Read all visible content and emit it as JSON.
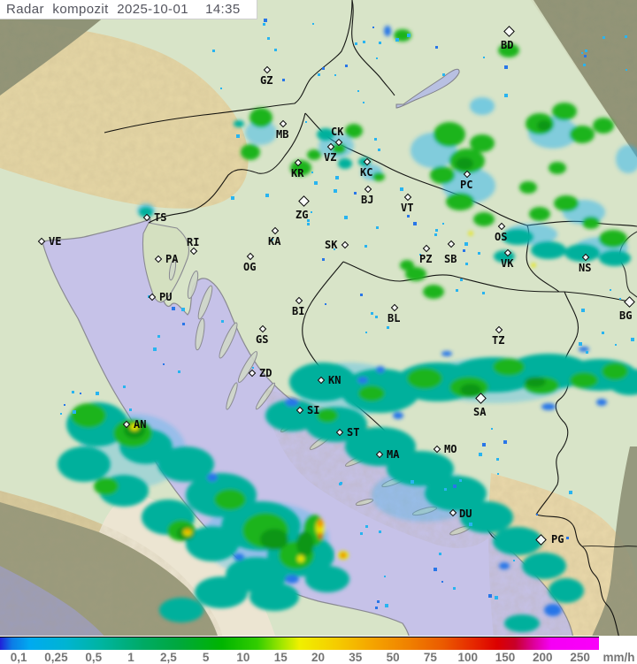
{
  "title": {
    "text": "Radar kompozit 2025-10-01  14:35"
  },
  "colors": {
    "land_in_range": "#d8e4c8",
    "sea_in_range": "#c6c2e8",
    "sea_out_range": "#9c9db8",
    "land_out_range": "#8f9377",
    "terrain_tan": "#e6d7a6",
    "pale_ridge": "#ece5d2",
    "coastline": "#8a8a92",
    "border": "#000000",
    "title_fg": "#54555e",
    "tick_fg": "#757575",
    "rain_cyan": "#28b4f0",
    "rain_blue": "#2876e8",
    "rain_teal": "#00b09c",
    "rain_green": "#1eb41e",
    "rain_dark_green": "#0f9612",
    "rain_yellow": "#e6e600",
    "rain_orange": "#f08c00",
    "rain_red": "#e63c00"
  },
  "legend": {
    "unit": "mm/h",
    "ticks": [
      "0,1",
      "0,25",
      "0,5",
      "1",
      "2,5",
      "5",
      "10",
      "15",
      "20",
      "35",
      "50",
      "75",
      "100",
      "150",
      "200",
      "250"
    ],
    "gradient": [
      [
        0,
        "#2020d8"
      ],
      [
        0.02,
        "#0c7ce6"
      ],
      [
        0.05,
        "#00aaf0"
      ],
      [
        0.11,
        "#00b4d2"
      ],
      [
        0.17,
        "#00b4a0"
      ],
      [
        0.24,
        "#00aa64"
      ],
      [
        0.3,
        "#00a83c"
      ],
      [
        0.37,
        "#00b400"
      ],
      [
        0.43,
        "#32cd00"
      ],
      [
        0.47,
        "#a0e600"
      ],
      [
        0.5,
        "#f0f000"
      ],
      [
        0.56,
        "#f5cd00"
      ],
      [
        0.62,
        "#f5a500"
      ],
      [
        0.68,
        "#f08200"
      ],
      [
        0.74,
        "#eb5a00"
      ],
      [
        0.79,
        "#e62800"
      ],
      [
        0.83,
        "#dc0000"
      ],
      [
        0.86,
        "#c80028"
      ],
      [
        0.89,
        "#dc0096"
      ],
      [
        0.92,
        "#f500f5"
      ],
      [
        1,
        "#fa00fa"
      ]
    ]
  },
  "cities": [
    {
      "label": "GZ",
      "d": [
        302,
        79
      ],
      "l": [
        294,
        85
      ],
      "big": false
    },
    {
      "label": "BD",
      "d": [
        575,
        35
      ],
      "l": [
        566,
        45
      ],
      "big": true
    },
    {
      "label": "MB",
      "d": [
        320,
        140
      ],
      "l": [
        312,
        146
      ],
      "big": false
    },
    {
      "label": "CK",
      "d": [
        383,
        161
      ],
      "l": [
        374,
        143
      ],
      "big": false
    },
    {
      "label": "VZ",
      "d": [
        374,
        166
      ],
      "l": [
        366,
        172
      ],
      "big": false
    },
    {
      "label": "KR",
      "d": [
        337,
        184
      ],
      "l": [
        329,
        190
      ],
      "big": false
    },
    {
      "label": "KC",
      "d": [
        415,
        183
      ],
      "l": [
        407,
        189
      ],
      "big": false
    },
    {
      "label": "ZG",
      "d": [
        343,
        227
      ],
      "l": [
        334,
        237
      ],
      "big": true
    },
    {
      "label": "BJ",
      "d": [
        416,
        214
      ],
      "l": [
        408,
        220
      ],
      "big": false
    },
    {
      "label": "VT",
      "d": [
        461,
        223
      ],
      "l": [
        453,
        229
      ],
      "big": false
    },
    {
      "label": "TS",
      "d": [
        166,
        246
      ],
      "l": [
        174,
        240
      ],
      "big": false
    },
    {
      "label": "VE",
      "d": [
        47,
        273
      ],
      "l": [
        55,
        267
      ],
      "big": false
    },
    {
      "label": "RI",
      "d": [
        219,
        284
      ],
      "l": [
        211,
        268
      ],
      "big": false
    },
    {
      "label": "PA",
      "d": [
        179,
        293
      ],
      "l": [
        187,
        287
      ],
      "big": false
    },
    {
      "label": "PU",
      "d": [
        172,
        336
      ],
      "l": [
        180,
        330
      ],
      "big": false
    },
    {
      "label": "KA",
      "d": [
        311,
        261
      ],
      "l": [
        303,
        267
      ],
      "big": false
    },
    {
      "label": "OG",
      "d": [
        283,
        290
      ],
      "l": [
        275,
        296
      ],
      "big": false
    },
    {
      "label": "SK",
      "d": [
        390,
        277
      ],
      "l": [
        367,
        271
      ],
      "big": false
    },
    {
      "label": "PC",
      "d": [
        528,
        197
      ],
      "l": [
        520,
        203
      ],
      "big": false
    },
    {
      "label": "OS",
      "d": [
        567,
        256
      ],
      "l": [
        559,
        262
      ],
      "big": false
    },
    {
      "label": "PZ",
      "d": [
        482,
        281
      ],
      "l": [
        474,
        287
      ],
      "big": false
    },
    {
      "label": "SB",
      "d": [
        510,
        276
      ],
      "l": [
        502,
        287
      ],
      "big": false
    },
    {
      "label": "VK",
      "d": [
        574,
        286
      ],
      "l": [
        566,
        292
      ],
      "big": false
    },
    {
      "label": "NS",
      "d": [
        662,
        291
      ],
      "l": [
        654,
        297
      ],
      "big": false
    },
    {
      "label": "BG",
      "d": [
        711,
        341
      ],
      "l": [
        700,
        351
      ],
      "big": true
    },
    {
      "label": "BL",
      "d": [
        446,
        348
      ],
      "l": [
        438,
        354
      ],
      "big": false
    },
    {
      "label": "BI",
      "d": [
        338,
        340
      ],
      "l": [
        330,
        346
      ],
      "big": false
    },
    {
      "label": "TZ",
      "d": [
        564,
        373
      ],
      "l": [
        556,
        379
      ],
      "big": false
    },
    {
      "label": "GS",
      "d": [
        297,
        372
      ],
      "l": [
        289,
        378
      ],
      "big": false
    },
    {
      "label": "ZD",
      "d": [
        285,
        422
      ],
      "l": [
        293,
        416
      ],
      "big": false
    },
    {
      "label": "KN",
      "d": [
        363,
        430
      ],
      "l": [
        371,
        424
      ],
      "big": false
    },
    {
      "label": "SI",
      "d": [
        339,
        464
      ],
      "l": [
        347,
        458
      ],
      "big": false
    },
    {
      "label": "ST",
      "d": [
        384,
        489
      ],
      "l": [
        392,
        483
      ],
      "big": false
    },
    {
      "label": "MA",
      "d": [
        429,
        514
      ],
      "l": [
        437,
        508
      ],
      "big": false
    },
    {
      "label": "MO",
      "d": [
        494,
        508
      ],
      "l": [
        502,
        502
      ],
      "big": false
    },
    {
      "label": "SA",
      "d": [
        543,
        450
      ],
      "l": [
        535,
        460
      ],
      "big": true
    },
    {
      "label": "DU",
      "d": [
        512,
        580
      ],
      "l": [
        519,
        575
      ],
      "big": false
    },
    {
      "label": "PG",
      "d": [
        611,
        610
      ],
      "l": [
        623,
        604
      ],
      "big": true
    },
    {
      "label": "AN",
      "d": [
        143,
        480
      ],
      "l": [
        151,
        474
      ],
      "big": false
    }
  ]
}
